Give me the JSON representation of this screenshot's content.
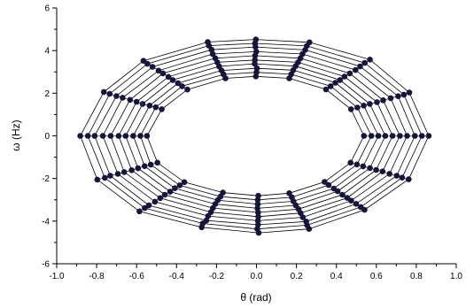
{
  "chart_data": {
    "type": "line",
    "title": "",
    "xlabel": "θ (rad)",
    "ylabel": "ω (Hz)",
    "xlim": [
      -1.0,
      1.0
    ],
    "ylim": [
      -6,
      6
    ],
    "x_ticks": [
      "-1.0",
      "-0.8",
      "-0.6",
      "-0.4",
      "-0.2",
      "0.0",
      "0.2",
      "0.4",
      "0.6",
      "0.8",
      "1.0"
    ],
    "y_ticks": [
      "-6",
      "-4",
      "-2",
      "0",
      "2",
      "4",
      "6"
    ],
    "grid": false,
    "legend": "none",
    "marker_color": "#14143c",
    "line_color": "#000000",
    "series": [
      {
        "name": "",
        "x": [
          0.862,
          0.765,
          0.568,
          0.265,
          -0.003,
          -0.244,
          -0.566,
          -0.764,
          -0.882,
          -0.797,
          -0.586,
          -0.274,
          0.011,
          0.263,
          0.541,
          0.762,
          0.862
        ],
        "y": [
          0.0,
          2.03,
          3.58,
          4.39,
          4.52,
          4.4,
          3.52,
          2.06,
          0.0,
          -2.05,
          -3.54,
          -4.29,
          -4.55,
          -4.37,
          -3.47,
          -2.04,
          0.0
        ]
      },
      {
        "name": "",
        "x": [
          0.828,
          0.738,
          0.542,
          0.252,
          -0.007,
          -0.238,
          -0.546,
          -0.735,
          -0.844,
          -0.759,
          -0.559,
          -0.269,
          0.004,
          0.253,
          0.522,
          0.729,
          0.828
        ],
        "y": [
          0.0,
          1.93,
          3.42,
          4.22,
          4.34,
          4.23,
          3.38,
          1.97,
          0.0,
          -1.97,
          -3.39,
          -4.11,
          -4.37,
          -4.19,
          -3.34,
          -1.96,
          0.0
        ]
      },
      {
        "name": "",
        "x": [
          0.793,
          0.709,
          0.519,
          0.244,
          -0.005,
          -0.225,
          -0.52,
          -0.701,
          -0.81,
          -0.732,
          -0.539,
          -0.251,
          0.008,
          0.249,
          0.499,
          0.702,
          0.793
        ],
        "y": [
          0.0,
          1.86,
          3.26,
          4.03,
          4.17,
          4.04,
          3.24,
          1.87,
          0.0,
          -1.87,
          -3.26,
          -3.97,
          -4.17,
          -4.02,
          -3.19,
          -1.87,
          0.0
        ]
      },
      {
        "name": "",
        "x": [
          0.754,
          0.672,
          0.496,
          0.23,
          -0.001,
          -0.219,
          -0.49,
          -0.67,
          -0.769,
          -0.694,
          -0.508,
          -0.242,
          0.007,
          0.232,
          0.474,
          0.666,
          0.754
        ],
        "y": [
          0.0,
          1.77,
          3.09,
          3.84,
          3.95,
          3.84,
          3.06,
          1.79,
          0.0,
          -1.78,
          -3.09,
          -3.76,
          -3.98,
          -3.82,
          -3.04,
          -1.78,
          0.0
        ]
      },
      {
        "name": "",
        "x": [
          0.718,
          0.634,
          0.467,
          0.22,
          -0.007,
          -0.206,
          -0.468,
          -0.633,
          -0.73,
          -0.662,
          -0.482,
          -0.228,
          0.009,
          0.221,
          0.454,
          0.631,
          0.718
        ],
        "y": [
          0.0,
          1.67,
          2.93,
          3.64,
          3.76,
          3.64,
          2.93,
          1.69,
          0.0,
          -1.7,
          -2.92,
          -3.58,
          -3.79,
          -3.62,
          -2.91,
          -1.67,
          0.0
        ]
      },
      {
        "name": "",
        "x": [
          0.681,
          0.603,
          0.441,
          0.208,
          -0.008,
          -0.196,
          -0.441,
          -0.6,
          -0.69,
          -0.625,
          -0.459,
          -0.218,
          0.008,
          0.21,
          0.43,
          0.599,
          0.681
        ],
        "y": [
          0.0,
          1.58,
          2.78,
          3.45,
          3.56,
          3.45,
          2.77,
          1.6,
          0.0,
          -1.61,
          -2.76,
          -3.39,
          -3.59,
          -3.44,
          -2.76,
          -1.6,
          0.0
        ]
      },
      {
        "name": "",
        "x": [
          0.645,
          0.567,
          0.418,
          0.196,
          -0.009,
          -0.187,
          -0.419,
          -0.57,
          -0.655,
          -0.593,
          -0.432,
          -0.206,
          0.005,
          0.197,
          0.406,
          0.568,
          0.645
        ],
        "y": [
          0.0,
          1.5,
          2.62,
          3.27,
          3.38,
          3.26,
          2.62,
          1.5,
          0.0,
          -1.52,
          -2.62,
          -3.2,
          -3.4,
          -3.26,
          -2.6,
          -1.51,
          0.0
        ]
      },
      {
        "name": "",
        "x": [
          0.61,
          0.537,
          0.395,
          0.184,
          0.002,
          -0.175,
          -0.393,
          -0.535,
          -0.617,
          -0.56,
          -0.409,
          -0.194,
          0.006,
          0.185,
          0.387,
          0.534,
          0.61
        ],
        "y": [
          0.0,
          1.42,
          2.49,
          3.08,
          3.17,
          3.07,
          2.47,
          1.42,
          0.0,
          -1.42,
          -2.46,
          -3.02,
          -3.2,
          -3.07,
          -2.47,
          -1.43,
          0.0
        ]
      },
      {
        "name": "",
        "x": [
          0.575,
          0.505,
          0.371,
          0.174,
          0.0,
          -0.165,
          -0.372,
          -0.504,
          -0.581,
          -0.529,
          -0.384,
          -0.18,
          0.006,
          0.177,
          0.361,
          0.503,
          0.575
        ],
        "y": [
          0.0,
          1.33,
          2.33,
          2.89,
          2.98,
          2.88,
          2.33,
          1.34,
          0.0,
          -1.35,
          -2.32,
          -2.85,
          -3.0,
          -2.88,
          -2.31,
          -1.34,
          0.0
        ]
      },
      {
        "name": "",
        "x": [
          0.538,
          0.473,
          0.348,
          0.164,
          -0.003,
          -0.155,
          -0.346,
          -0.474,
          -0.548,
          -0.496,
          -0.361,
          -0.168,
          0.009,
          0.164,
          0.341,
          0.471,
          0.538
        ],
        "y": [
          0.0,
          1.25,
          2.18,
          2.7,
          2.79,
          2.7,
          2.17,
          1.25,
          0.0,
          -1.26,
          -2.17,
          -2.66,
          -2.81,
          -2.69,
          -2.16,
          -1.26,
          0.0
        ]
      }
    ]
  }
}
